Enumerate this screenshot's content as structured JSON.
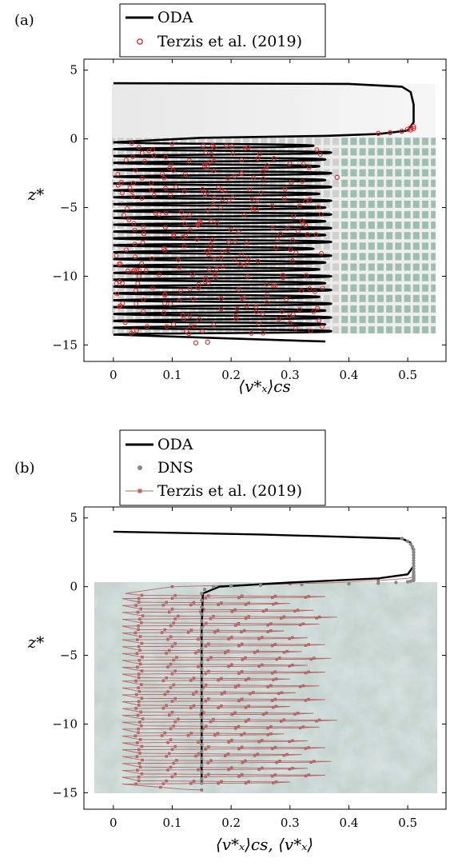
{
  "chart_data": [
    {
      "panel": "(a)",
      "type": "line",
      "xlabel": "⟨v*ₓ⟩cs",
      "ylabel": "z*",
      "xlim": [
        -0.05,
        0.565
      ],
      "ylim": [
        -16.2,
        5.8
      ],
      "xticks": [
        0,
        0.1,
        0.2,
        0.3,
        0.4,
        0.5
      ],
      "xtick_labels": [
        "0",
        "0.1",
        "0.2",
        "0.3",
        "0.4",
        "0.5"
      ],
      "yticks": [
        5,
        0,
        -5,
        -10,
        -15
      ],
      "ytick_labels": [
        "5",
        "0",
        "−5",
        "−10",
        "−15"
      ],
      "legend": {
        "placement": "top",
        "entries": [
          {
            "name": "ODA",
            "style": "line",
            "color": "#000000"
          },
          {
            "name": "Terzis et al. (2019)",
            "style": "circle",
            "color": "#d62728"
          }
        ]
      },
      "background_image": "canopy-channel-render",
      "series": [
        {
          "name": "ODA",
          "x": [
            0,
            0.4,
            0.49,
            0.505,
            0.51,
            0.51,
            0.5,
            0.45,
            0.36,
            0.0,
            0.36,
            0.0,
            0.36,
            0.0,
            0.36,
            0.0,
            0.36,
            0.0,
            0.36,
            0.0,
            0.36,
            0.0,
            0.36,
            0.0,
            0.36,
            0.0,
            0.36,
            0.0,
            0.36,
            0.0,
            0.36,
            0.0,
            0.36,
            0.0,
            0.36,
            0.0,
            0.36,
            0.0,
            0.36,
            0.0,
            0.36,
            0.0,
            0.36,
            0.0,
            0.36,
            0.0,
            0.36,
            0.0,
            0.36,
            0.0,
            0.36,
            0.0,
            0.36,
            0.0,
            0.36,
            0.0,
            0.36,
            0.0,
            0.36,
            0.0,
            0.36
          ],
          "y": [
            4.05,
            4.0,
            3.8,
            3.4,
            2.5,
            1.2,
            0.6,
            0.35,
            0.2,
            -0.3,
            -0.75,
            -1.25,
            -1.75,
            -2.25,
            -2.75,
            -3.25,
            -3.75,
            -4.25,
            -4.75,
            -5.25,
            -5.75,
            -6.25,
            -6.75,
            -7.25,
            -7.75,
            -8.25,
            -8.75,
            -9.25,
            -9.75,
            -10.25,
            -10.75,
            -11.25,
            -11.75,
            -12.25,
            -12.75,
            -13.25,
            -13.75,
            -14.25,
            -14.75,
            -14.75,
            -14.75,
            -14.75,
            -14.75,
            -14.75,
            -14.75,
            -14.75,
            -14.75,
            -14.75,
            -14.75,
            -14.75,
            -14.75,
            -14.75,
            -14.75,
            -14.75,
            -14.75,
            -14.75,
            -14.75,
            -14.75,
            -14.75,
            -14.75,
            -14.75
          ]
        }
      ]
    },
    {
      "panel": "(b)",
      "type": "line",
      "xlabel": "⟨v*ₓ⟩cs, ⟨v*ₓ⟩",
      "ylabel": "z*",
      "xlim": [
        -0.05,
        0.565
      ],
      "ylim": [
        -16.2,
        5.8
      ],
      "xticks": [
        0,
        0.1,
        0.2,
        0.3,
        0.4,
        0.5
      ],
      "xtick_labels": [
        "0",
        "0.1",
        "0.2",
        "0.3",
        "0.4",
        "0.5"
      ],
      "yticks": [
        5,
        0,
        -5,
        -10,
        -15
      ],
      "ytick_labels": [
        "5",
        "0",
        "−5",
        "−10",
        "−15"
      ],
      "legend": {
        "placement": "top",
        "entries": [
          {
            "name": "ODA",
            "style": "line",
            "color": "#000000"
          },
          {
            "name": "DNS",
            "style": "dot",
            "color": "#888888"
          },
          {
            "name": "Terzis et al. (2019)",
            "style": "line-square",
            "color": "#b5676a"
          }
        ]
      },
      "background_image": "vegetation-canopy-texture",
      "series": [
        {
          "name": "ODA",
          "x": [
            0,
            0.25,
            0.49,
            0.505,
            0.51,
            0.51,
            0.5,
            0.45,
            0.3,
            0.18,
            0.152,
            0.15,
            0.15
          ],
          "y": [
            4.0,
            3.8,
            3.5,
            3.2,
            2.5,
            1.5,
            0.9,
            0.6,
            0.3,
            0.0,
            -0.5,
            -3.0,
            -14.3
          ]
        },
        {
          "name": "DNS",
          "x": [
            0.49,
            0.5,
            0.505,
            0.508,
            0.51,
            0.51,
            0.51,
            0.51,
            0.51,
            0.51,
            0.51,
            0.51,
            0.51,
            0.51,
            0.51,
            0.51,
            0.51,
            0.51,
            0.51,
            0.51,
            0.51,
            0.505,
            0.5,
            0.48,
            0.45,
            0.4,
            0.32,
            0.25,
            0.2,
            0.17,
            0.155,
            0.15,
            0.15,
            0.15,
            0.15,
            0.15,
            0.15,
            0.15,
            0.15,
            0.15,
            0.15,
            0.15,
            0.15,
            0.15,
            0.15,
            0.15,
            0.15,
            0.15,
            0.15,
            0.15,
            0.15,
            0.15,
            0.15,
            0.15,
            0.15,
            0.15,
            0.15,
            0.15,
            0.15,
            0.15
          ],
          "y": [
            3.5,
            3.3,
            3.1,
            2.9,
            2.7,
            2.5,
            2.3,
            2.1,
            1.9,
            1.7,
            1.5,
            1.3,
            1.1,
            0.95,
            0.85,
            0.75,
            0.68,
            0.62,
            0.56,
            0.5,
            0.45,
            0.4,
            0.35,
            0.3,
            0.25,
            0.2,
            0.15,
            0.1,
            0.05,
            0.0,
            -0.2,
            -0.5,
            -1.0,
            -1.5,
            -2.0,
            -2.5,
            -3.0,
            -3.5,
            -4.0,
            -4.5,
            -5.0,
            -5.5,
            -6.0,
            -6.5,
            -7.0,
            -7.5,
            -8.0,
            -8.5,
            -9.0,
            -9.5,
            -10.0,
            -10.5,
            -11.0,
            -11.5,
            -12.0,
            -12.5,
            -13.0,
            -13.5,
            -14.0,
            -14.3
          ]
        }
      ]
    }
  ]
}
